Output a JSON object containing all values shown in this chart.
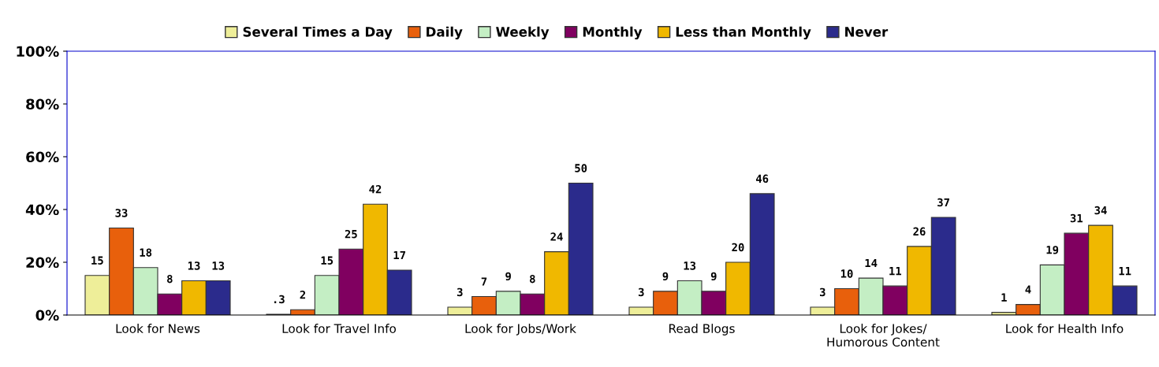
{
  "chart_data": {
    "type": "bar",
    "categories": [
      "Look for News",
      "Look for Travel Info",
      "Look for Jobs/Work",
      "Read Blogs",
      "Look for Jokes/\nHumorous Content",
      "Look for Health Info"
    ],
    "series": [
      {
        "name": "Several Times a Day",
        "color": "#eeee99",
        "values": [
          15,
          0.3,
          3,
          3,
          3,
          1
        ],
        "value_labels": [
          "15",
          ".3",
          "3",
          "3",
          "3",
          "1"
        ]
      },
      {
        "name": "Daily",
        "color": "#e8600c",
        "values": [
          33,
          2,
          7,
          9,
          10,
          4
        ],
        "value_labels": [
          "33",
          "2",
          "7",
          "9",
          "10",
          "4"
        ]
      },
      {
        "name": "Weekly",
        "color": "#c4eec4",
        "values": [
          18,
          15,
          9,
          13,
          14,
          19
        ],
        "value_labels": [
          "18",
          "15",
          "9",
          "13",
          "14",
          "19"
        ]
      },
      {
        "name": "Monthly",
        "color": "#800060",
        "values": [
          8,
          25,
          8,
          9,
          11,
          31
        ],
        "value_labels": [
          "8",
          "25",
          "8",
          "9",
          "11",
          "31"
        ]
      },
      {
        "name": "Less than Monthly",
        "color": "#f0b800",
        "values": [
          13,
          42,
          24,
          20,
          26,
          34
        ],
        "value_labels": [
          "13",
          "42",
          "24",
          "20",
          "26",
          "34"
        ]
      },
      {
        "name": "Never",
        "color": "#2b2b8c",
        "values": [
          13,
          17,
          50,
          46,
          37,
          11
        ],
        "value_labels": [
          "13",
          "17",
          "50",
          "46",
          "37",
          "11"
        ]
      }
    ],
    "ylim": [
      0,
      100
    ],
    "yticks": [
      {
        "value": 0,
        "label": "0%"
      },
      {
        "value": 20,
        "label": "20%"
      },
      {
        "value": 40,
        "label": "40%"
      },
      {
        "value": 60,
        "label": "60%"
      },
      {
        "value": 80,
        "label": "80%"
      },
      {
        "value": 100,
        "label": "100%"
      }
    ],
    "grid": false,
    "legend": "top"
  }
}
